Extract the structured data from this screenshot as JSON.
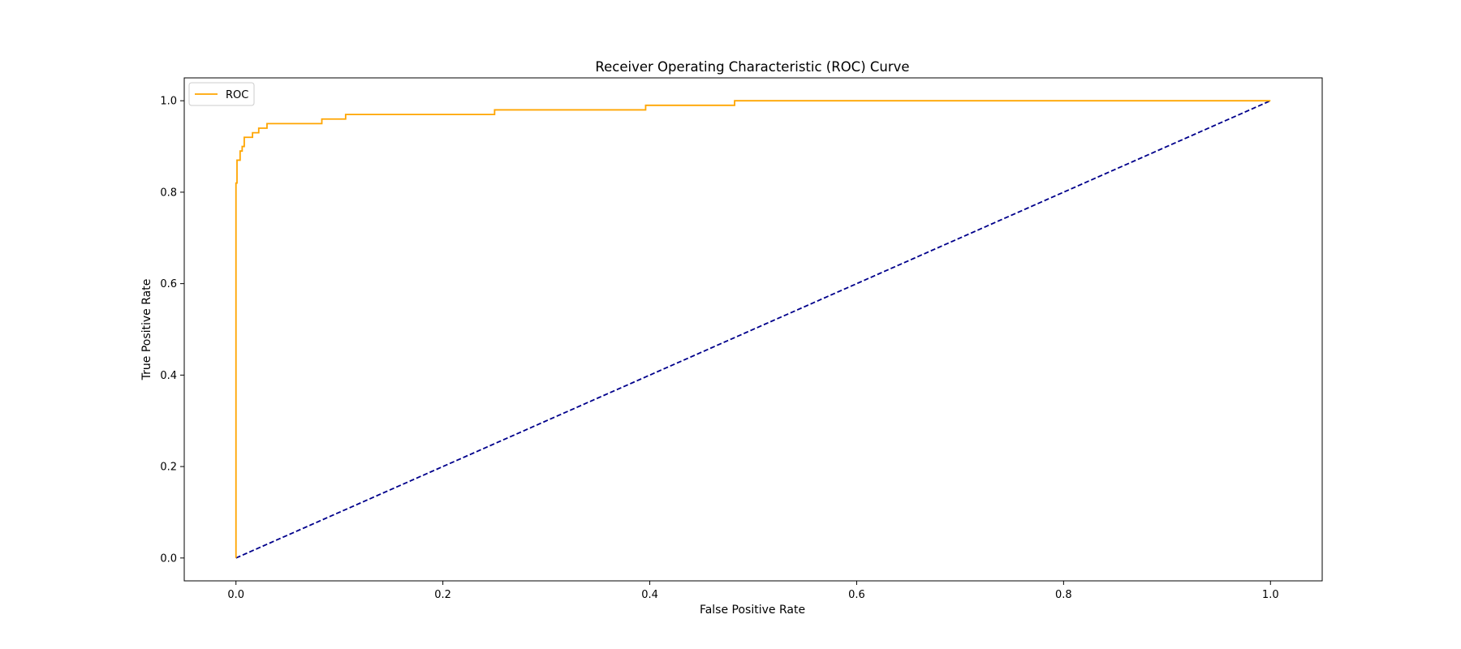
{
  "chart_data": {
    "type": "line",
    "title": "Receiver Operating Characteristic (ROC) Curve",
    "xlabel": "False Positive Rate",
    "ylabel": "True Positive Rate",
    "xlim": [
      -0.05,
      1.05
    ],
    "ylim": [
      -0.05,
      1.05
    ],
    "xticks": [
      0.0,
      0.2,
      0.4,
      0.6,
      0.8,
      1.0
    ],
    "yticks": [
      0.0,
      0.2,
      0.4,
      0.6,
      0.8,
      1.0
    ],
    "xtick_labels": [
      "0.0",
      "0.2",
      "0.4",
      "0.6",
      "0.8",
      "1.0"
    ],
    "ytick_labels": [
      "0.0",
      "0.2",
      "0.4",
      "0.6",
      "0.8",
      "1.0"
    ],
    "grid": false,
    "legend": {
      "position": "top-left",
      "entries": [
        "ROC"
      ]
    },
    "series": [
      {
        "name": "ROC",
        "color": "#ffa500",
        "style": "solid",
        "x": [
          0.0,
          0.0,
          0.0,
          0.0,
          0.001,
          0.001,
          0.004,
          0.004,
          0.006,
          0.006,
          0.008,
          0.008,
          0.011,
          0.011,
          0.016,
          0.016,
          0.022,
          0.022,
          0.03,
          0.03,
          0.083,
          0.083,
          0.106,
          0.106,
          0.25,
          0.25,
          0.396,
          0.396,
          0.482,
          0.482,
          1.0
        ],
        "y": [
          0.0,
          0.5,
          0.8,
          0.82,
          0.82,
          0.87,
          0.87,
          0.89,
          0.89,
          0.9,
          0.9,
          0.92,
          0.92,
          0.92,
          0.92,
          0.93,
          0.93,
          0.94,
          0.94,
          0.95,
          0.95,
          0.96,
          0.96,
          0.97,
          0.97,
          0.98,
          0.98,
          0.99,
          0.99,
          1.0,
          1.0
        ]
      },
      {
        "color": "#00008b",
        "style": "dashed",
        "x": [
          0.0,
          1.0
        ],
        "y": [
          0.0,
          1.0
        ]
      }
    ]
  }
}
